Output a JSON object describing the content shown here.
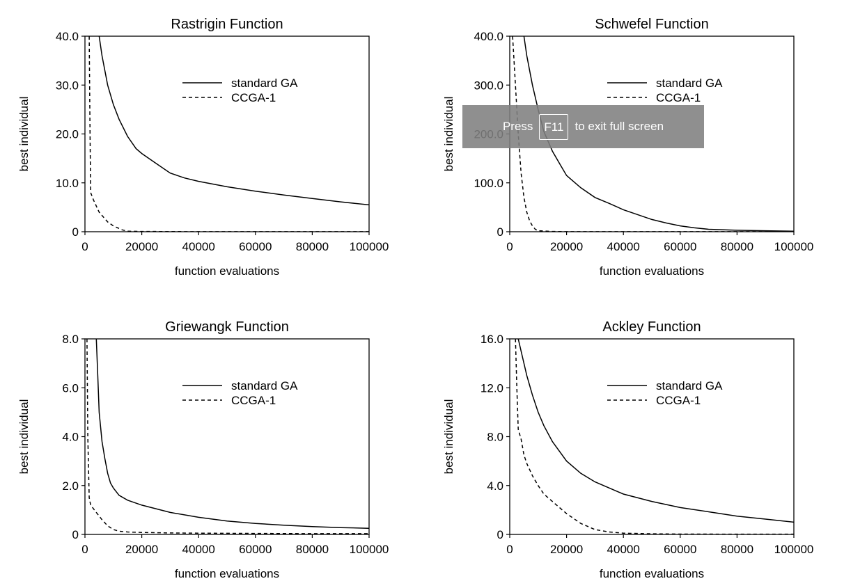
{
  "chart_data": [
    {
      "type": "line",
      "title": "Rastrigin Function",
      "xlabel": "function evaluations",
      "ylabel": "best individual",
      "xlim": [
        0,
        100000
      ],
      "ylim": [
        0,
        40
      ],
      "xticks": [
        "0",
        "20000",
        "40000",
        "60000",
        "80000",
        "100000"
      ],
      "yticks": [
        "0",
        "10.0",
        "20.0",
        "30.0",
        "40.0"
      ],
      "legend_position": "upper-right",
      "series": [
        {
          "name": "standard GA",
          "style": "solid",
          "x": [
            5000,
            6000,
            8000,
            10000,
            12000,
            15000,
            18000,
            20000,
            25000,
            30000,
            35000,
            40000,
            50000,
            60000,
            70000,
            80000,
            90000,
            100000
          ],
          "y": [
            40,
            36,
            30,
            26,
            23,
            19.5,
            17,
            16,
            14,
            12,
            11,
            10.3,
            9.2,
            8.3,
            7.5,
            6.8,
            6.1,
            5.5
          ]
        },
        {
          "name": "CCGA-1",
          "style": "dashed",
          "x": [
            1500,
            1800,
            2000,
            3000,
            5000,
            8000,
            10000,
            13000,
            15000,
            20000,
            40000,
            60000,
            80000,
            100000
          ],
          "y": [
            40,
            20,
            8,
            6.5,
            4,
            2,
            1.2,
            0.4,
            0.1,
            0.05,
            0.02,
            0.01,
            0.01,
            0.01
          ]
        }
      ]
    },
    {
      "type": "line",
      "title": "Schwefel Function",
      "xlabel": "function evaluations",
      "ylabel": "best individual",
      "xlim": [
        0,
        100000
      ],
      "ylim": [
        0,
        400
      ],
      "xticks": [
        "0",
        "20000",
        "40000",
        "60000",
        "80000",
        "100000"
      ],
      "yticks": [
        "0",
        "100.0",
        "200.0",
        "300.0",
        "400.0"
      ],
      "legend_position": "upper-right",
      "series": [
        {
          "name": "standard GA",
          "style": "solid",
          "x": [
            5000,
            6000,
            8000,
            10000,
            12000,
            15000,
            18000,
            20000,
            25000,
            30000,
            35000,
            40000,
            45000,
            50000,
            55000,
            60000,
            65000,
            70000,
            80000,
            90000,
            100000
          ],
          "y": [
            400,
            360,
            300,
            250,
            205,
            165,
            135,
            115,
            90,
            70,
            58,
            45,
            35,
            25,
            18,
            12,
            8,
            5,
            3,
            2,
            1
          ]
        },
        {
          "name": "CCGA-1",
          "style": "dashed",
          "x": [
            1000,
            2000,
            3000,
            4000,
            5000,
            6000,
            7000,
            8000,
            9000,
            10000,
            15000,
            20000,
            40000,
            60000,
            80000,
            100000
          ],
          "y": [
            400,
            300,
            200,
            120,
            70,
            40,
            22,
            12,
            5,
            2,
            0.5,
            0.2,
            0.1,
            0.1,
            0.1,
            0.1
          ]
        }
      ]
    },
    {
      "type": "line",
      "title": "Griewangk Function",
      "xlabel": "function evaluations",
      "ylabel": "best individual",
      "xlim": [
        0,
        100000
      ],
      "ylim": [
        0,
        8
      ],
      "xticks": [
        "0",
        "20000",
        "40000",
        "60000",
        "80000",
        "100000"
      ],
      "yticks": [
        "0",
        "2.0",
        "4.0",
        "6.0",
        "8.0"
      ],
      "legend_position": "upper-right",
      "series": [
        {
          "name": "standard GA",
          "style": "solid",
          "x": [
            4000,
            4500,
            5000,
            6000,
            7000,
            8000,
            9000,
            10000,
            12000,
            15000,
            20000,
            25000,
            30000,
            40000,
            50000,
            60000,
            70000,
            80000,
            90000,
            100000
          ],
          "y": [
            8,
            6.5,
            5,
            3.8,
            3.1,
            2.5,
            2.1,
            1.9,
            1.6,
            1.4,
            1.2,
            1.05,
            0.9,
            0.7,
            0.55,
            0.45,
            0.38,
            0.32,
            0.28,
            0.25
          ]
        },
        {
          "name": "CCGA-1",
          "style": "dashed",
          "x": [
            700,
            1000,
            1500,
            2000,
            4000,
            6000,
            8000,
            10000,
            12000,
            15000,
            20000,
            30000,
            40000,
            60000,
            80000,
            100000
          ],
          "y": [
            8,
            4,
            1.5,
            1.2,
            0.9,
            0.6,
            0.35,
            0.2,
            0.13,
            0.1,
            0.08,
            0.06,
            0.05,
            0.04,
            0.03,
            0.03
          ]
        }
      ]
    },
    {
      "type": "line",
      "title": "Ackley Function",
      "xlabel": "function evaluations",
      "ylabel": "best individual",
      "xlim": [
        0,
        100000
      ],
      "ylim": [
        0,
        16
      ],
      "xticks": [
        "0",
        "20000",
        "40000",
        "60000",
        "80000",
        "100000"
      ],
      "yticks": [
        "0",
        "4.0",
        "8.0",
        "12.0",
        "16.0"
      ],
      "legend_position": "upper-right",
      "series": [
        {
          "name": "standard GA",
          "style": "solid",
          "x": [
            3000,
            4000,
            6000,
            8000,
            10000,
            12000,
            15000,
            20000,
            25000,
            30000,
            40000,
            50000,
            60000,
            70000,
            80000,
            90000,
            100000
          ],
          "y": [
            16,
            15,
            13,
            11.4,
            10,
            8.9,
            7.6,
            6,
            5,
            4.3,
            3.3,
            2.7,
            2.2,
            1.85,
            1.5,
            1.25,
            1.0
          ]
        },
        {
          "name": "CCGA-1",
          "style": "dashed",
          "x": [
            2000,
            2500,
            3000,
            4000,
            5000,
            6000,
            8000,
            10000,
            12000,
            15000,
            20000,
            25000,
            30000,
            35000,
            40000,
            50000,
            60000,
            80000,
            100000
          ],
          "y": [
            16,
            12,
            8.6,
            7.8,
            6.5,
            5.8,
            4.8,
            4,
            3.3,
            2.7,
            1.7,
            0.9,
            0.4,
            0.2,
            0.1,
            0.05,
            0.03,
            0.02,
            0.02
          ]
        }
      ]
    }
  ],
  "fullscreen_notice": {
    "prefix": "Press",
    "key": "F11",
    "suffix": "to exit full screen"
  }
}
